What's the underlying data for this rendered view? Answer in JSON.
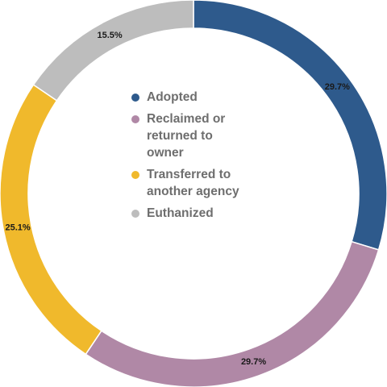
{
  "chart_data": {
    "type": "pie",
    "variant": "donut",
    "categories": [
      "Adopted",
      "Reclaimed or returned to owner",
      "Transferred to another agency",
      "Euthanized"
    ],
    "values": [
      29.7,
      29.7,
      25.1,
      15.5
    ],
    "data_labels": [
      "29.7%",
      "29.7%",
      "25.1%",
      "15.5%"
    ],
    "colors": [
      "#2e5a8c",
      "#b088a6",
      "#f0b92c",
      "#bdbdbd"
    ],
    "title": "",
    "legend_position": "center"
  },
  "legend": {
    "items": [
      {
        "label_lines": [
          "Adopted"
        ]
      },
      {
        "label_lines": [
          "Reclaimed or",
          "returned to",
          "owner"
        ]
      },
      {
        "label_lines": [
          "Transferred to",
          "another agency"
        ]
      },
      {
        "label_lines": [
          "Euthanized"
        ]
      }
    ]
  }
}
